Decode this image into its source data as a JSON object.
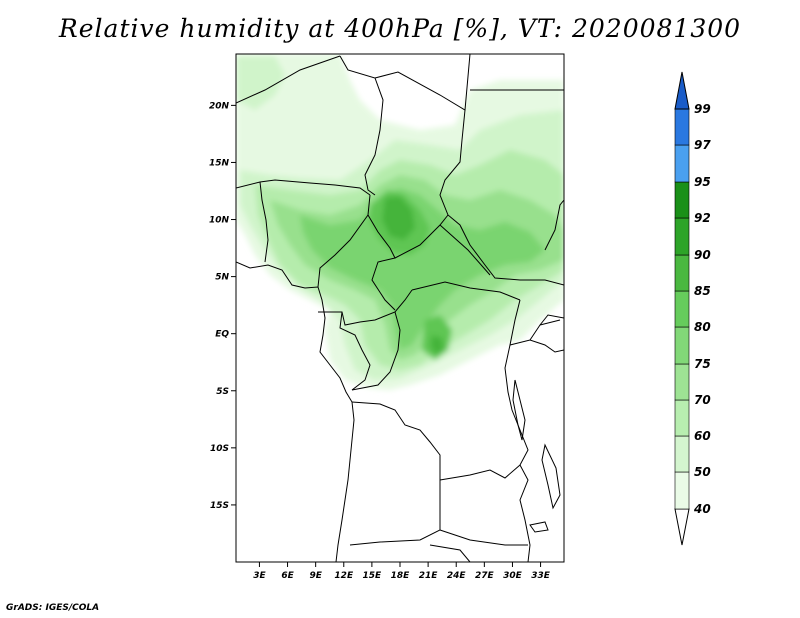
{
  "title": "Relative humidity at 400hPa [%], VT: 2020081300",
  "credit": "GrADS: IGES/COLA",
  "map": {
    "lat_labels": [
      "20N",
      "15N",
      "10N",
      "5N",
      "EQ",
      "5S",
      "10S",
      "15S"
    ],
    "lat_values": [
      20,
      15,
      10,
      5,
      0,
      -5,
      -10,
      -15
    ],
    "lon_labels": [
      "3E",
      "6E",
      "9E",
      "12E",
      "15E",
      "18E",
      "21E",
      "24E",
      "27E",
      "30E",
      "33E"
    ],
    "lon_values": [
      3,
      6,
      9,
      12,
      15,
      18,
      21,
      24,
      27,
      30,
      33
    ],
    "lon_range": [
      0.5,
      35.5
    ],
    "lat_range": [
      -20,
      24.5
    ]
  },
  "colorbar": {
    "levels": [
      "40",
      "50",
      "60",
      "70",
      "75",
      "80",
      "85",
      "90",
      "92",
      "95",
      "97",
      "99"
    ],
    "colors": [
      "#eafbe7",
      "#d4f5cf",
      "#b8eeb0",
      "#9ee394",
      "#82d878",
      "#66cc5c",
      "#4ab840",
      "#2da428",
      "#1a9018",
      "#4aa0f0",
      "#2a78e0",
      "#1a5cc8"
    ]
  }
}
